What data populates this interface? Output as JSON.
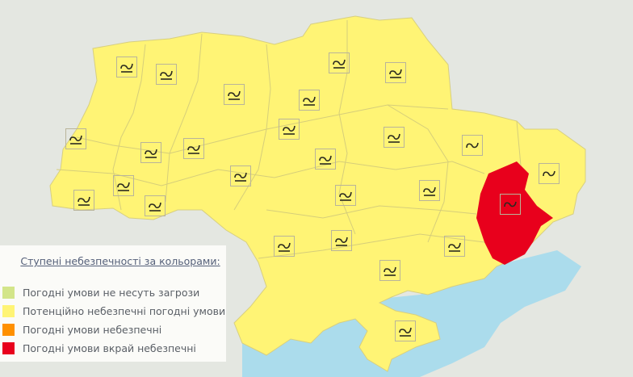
{
  "colors": {
    "background": "#e4e7e1",
    "sea": "#abdcec",
    "yellow": "#fff475",
    "red": "#e8001c",
    "border": "#c8c27a"
  },
  "map": {
    "highlighted_region": "Donetsk",
    "highlighted_level": "extreme",
    "default_level": "potentially-dangerous",
    "warning_icon_count": 26
  },
  "legend": {
    "title": "Ступені небезпечності за кольорами:",
    "items": [
      {
        "label": "Погодні умови не несуть загрози",
        "color": "#d3e58a"
      },
      {
        "label": "Потенційно небезпечні погодні умови",
        "color": "#fff475"
      },
      {
        "label": "Погодні умови небезпечні",
        "color": "#ff9000"
      },
      {
        "label": "Погодні умови вкрай небезпечні",
        "color": "#e8001c"
      }
    ]
  }
}
